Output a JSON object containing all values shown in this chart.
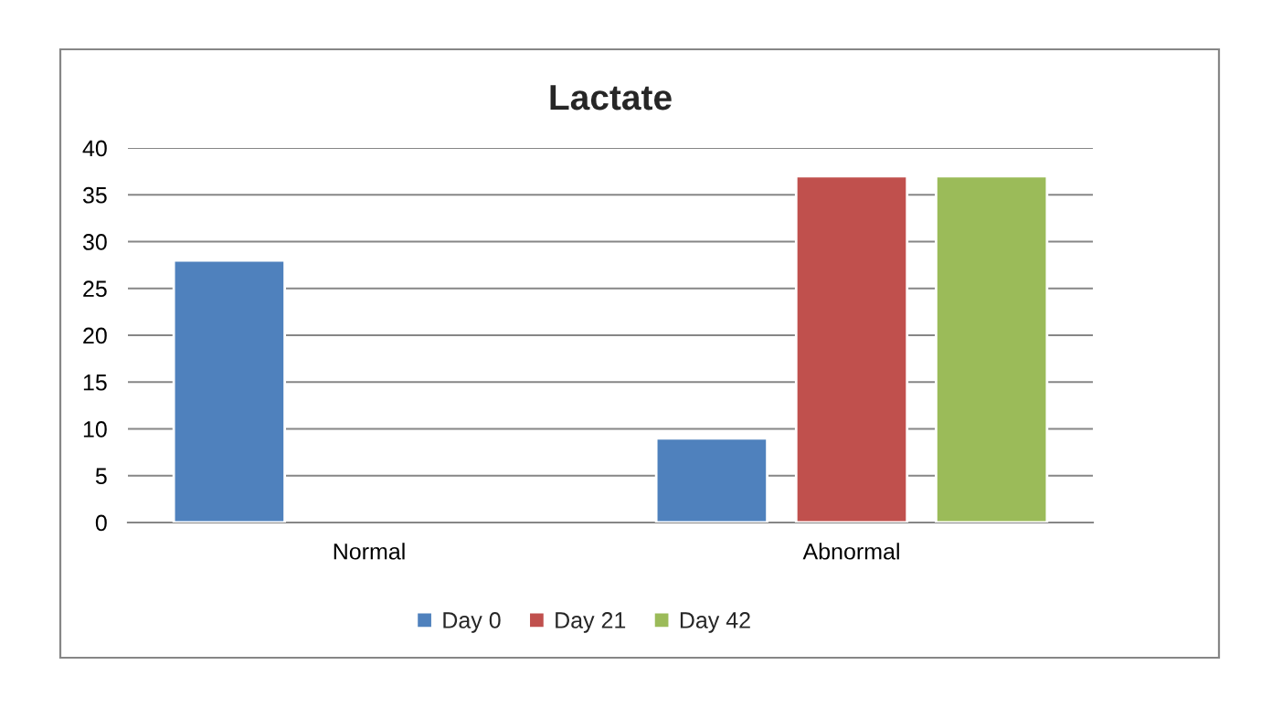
{
  "chart_data": {
    "type": "bar",
    "title": "Lactate",
    "categories": [
      "Normal",
      "Abnormal"
    ],
    "series": [
      {
        "name": "Day 0",
        "color": "#4f81bd",
        "values": [
          28,
          9
        ]
      },
      {
        "name": "Day 21",
        "color": "#c0504d",
        "values": [
          null,
          37
        ]
      },
      {
        "name": "Day 42",
        "color": "#9bbb59",
        "values": [
          null,
          37
        ]
      }
    ],
    "ylim": [
      0,
      40
    ],
    "yticks": [
      0,
      5,
      10,
      15,
      20,
      25,
      30,
      35,
      40
    ],
    "grid": "y",
    "legend": "bottom"
  }
}
